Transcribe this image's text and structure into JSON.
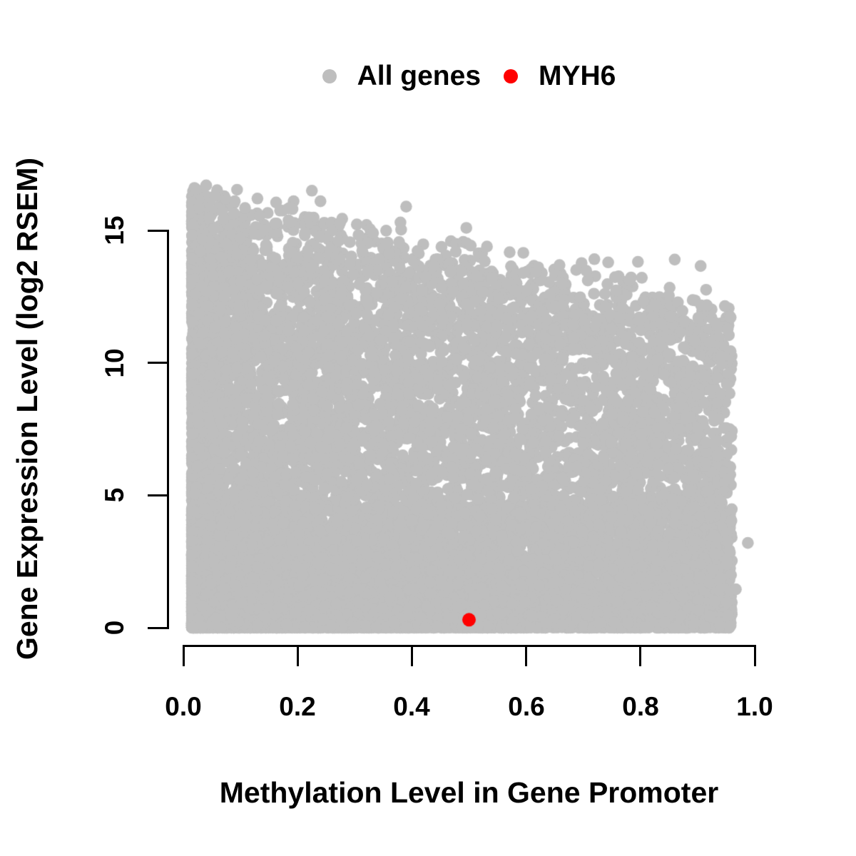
{
  "figure": {
    "background": "#ffffff",
    "text_color": "#000000"
  },
  "legend": {
    "position": "top-center",
    "items": [
      {
        "label": "All genes",
        "color": "#bebebe"
      },
      {
        "label": "MYH6",
        "color": "#ff0000"
      }
    ]
  },
  "chart_data": {
    "type": "scatter",
    "title": "",
    "xlabel": "Methylation Level in Gene Promoter",
    "ylabel": "Gene Expression Level (log2 RSEM)",
    "xlim": [
      0,
      1
    ],
    "ylim": [
      0,
      16.8
    ],
    "x_ticks": [
      0.0,
      0.2,
      0.4,
      0.6,
      0.8,
      1.0
    ],
    "x_tick_labels": [
      "0.0",
      "0.2",
      "0.4",
      "0.6",
      "0.8",
      "1.0"
    ],
    "y_ticks": [
      0,
      5,
      10,
      15
    ],
    "y_tick_labels": [
      "0",
      "5",
      "10",
      "15"
    ],
    "grid": false,
    "point_style": {
      "shape": "filled-circle",
      "radius_px": 8.3
    },
    "series": [
      {
        "name": "All genes",
        "color": "#bebebe",
        "kind": "dense-cloud",
        "n_points": 14000,
        "generator": {
          "seed": 42,
          "x_range": [
            0.015,
            0.96
          ],
          "y_max": 16.8,
          "left_skew_fraction": 0.45,
          "left_skew_exponent": 2.2,
          "bottom_band": {
            "fraction": 0.37,
            "y_max": 4.6,
            "exponent": 2.2
          },
          "top_envelope": {
            "intercept": 16.3,
            "slope": -4.6,
            "noise_sd": 0.55
          },
          "vertical_exponent": 1.3
        },
        "outlier_points": [
          [
            0.988,
            3.2
          ],
          [
            0.967,
            1.45
          ],
          [
            0.39,
            15.9
          ],
          [
            0.38,
            15.3
          ],
          [
            0.225,
            16.5
          ],
          [
            0.24,
            16.1
          ],
          [
            0.86,
            13.9
          ],
          [
            0.04,
            16.7
          ],
          [
            0.055,
            16.3
          ],
          [
            0.09,
            16.1
          ]
        ]
      },
      {
        "name": "MYH6",
        "color": "#ff0000",
        "kind": "highlight-point",
        "points": [
          [
            0.5,
            0.3
          ]
        ],
        "radius_px": 9.5
      }
    ]
  }
}
